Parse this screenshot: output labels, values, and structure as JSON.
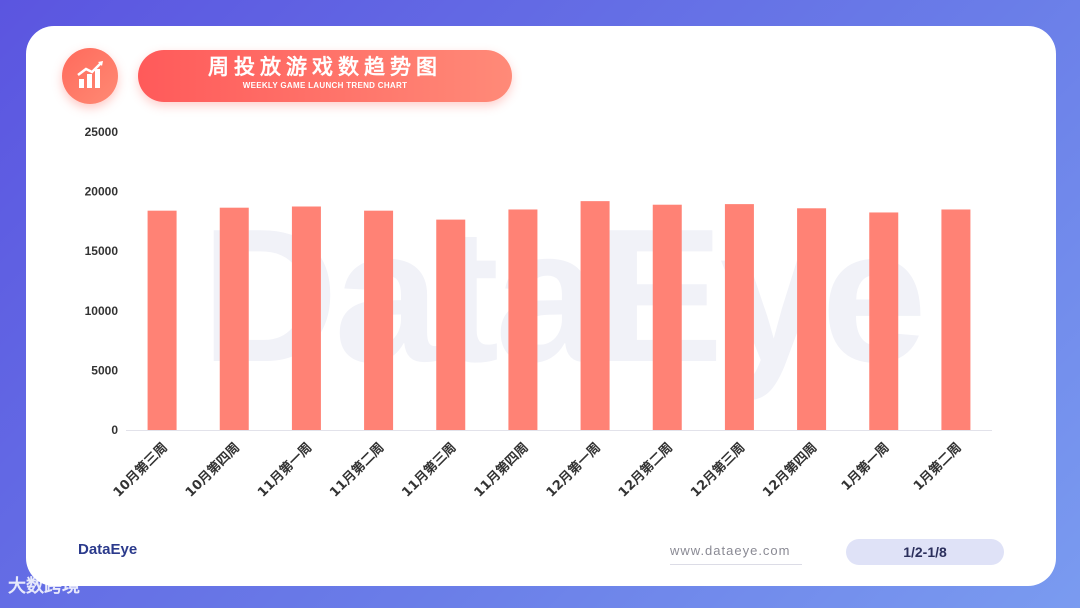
{
  "header": {
    "title": "周投放游戏数趋势图",
    "subtitle": "WEEKLY GAME LAUNCH TREND CHART",
    "icon": "bar-chart-trend-icon"
  },
  "watermark": "DataEye",
  "footer": {
    "logo": "DataEye",
    "website": "www.dataeye.com",
    "date_range": "1/2-1/8"
  },
  "source_mark": "大数跨境",
  "colors": {
    "bar": "#ff8275",
    "accent": "#ff5a5a",
    "background": "#5b55e0"
  },
  "chart_data": {
    "type": "bar",
    "categories": [
      "10月第三周",
      "10月第四周",
      "11月第一周",
      "11月第二周",
      "11月第三周",
      "11月第四周",
      "12月第一周",
      "12月第二周",
      "12月第三周",
      "12月第四周",
      "1月第一周",
      "1月第二周"
    ],
    "values": [
      18400,
      18650,
      18750,
      18400,
      17650,
      18500,
      19200,
      18900,
      18950,
      18600,
      18250,
      18500
    ],
    "ylim": [
      0,
      25000
    ],
    "yticks": [
      "0",
      "5000",
      "10000",
      "15000",
      "20000",
      "25000"
    ],
    "grid": false,
    "legend": "none"
  }
}
